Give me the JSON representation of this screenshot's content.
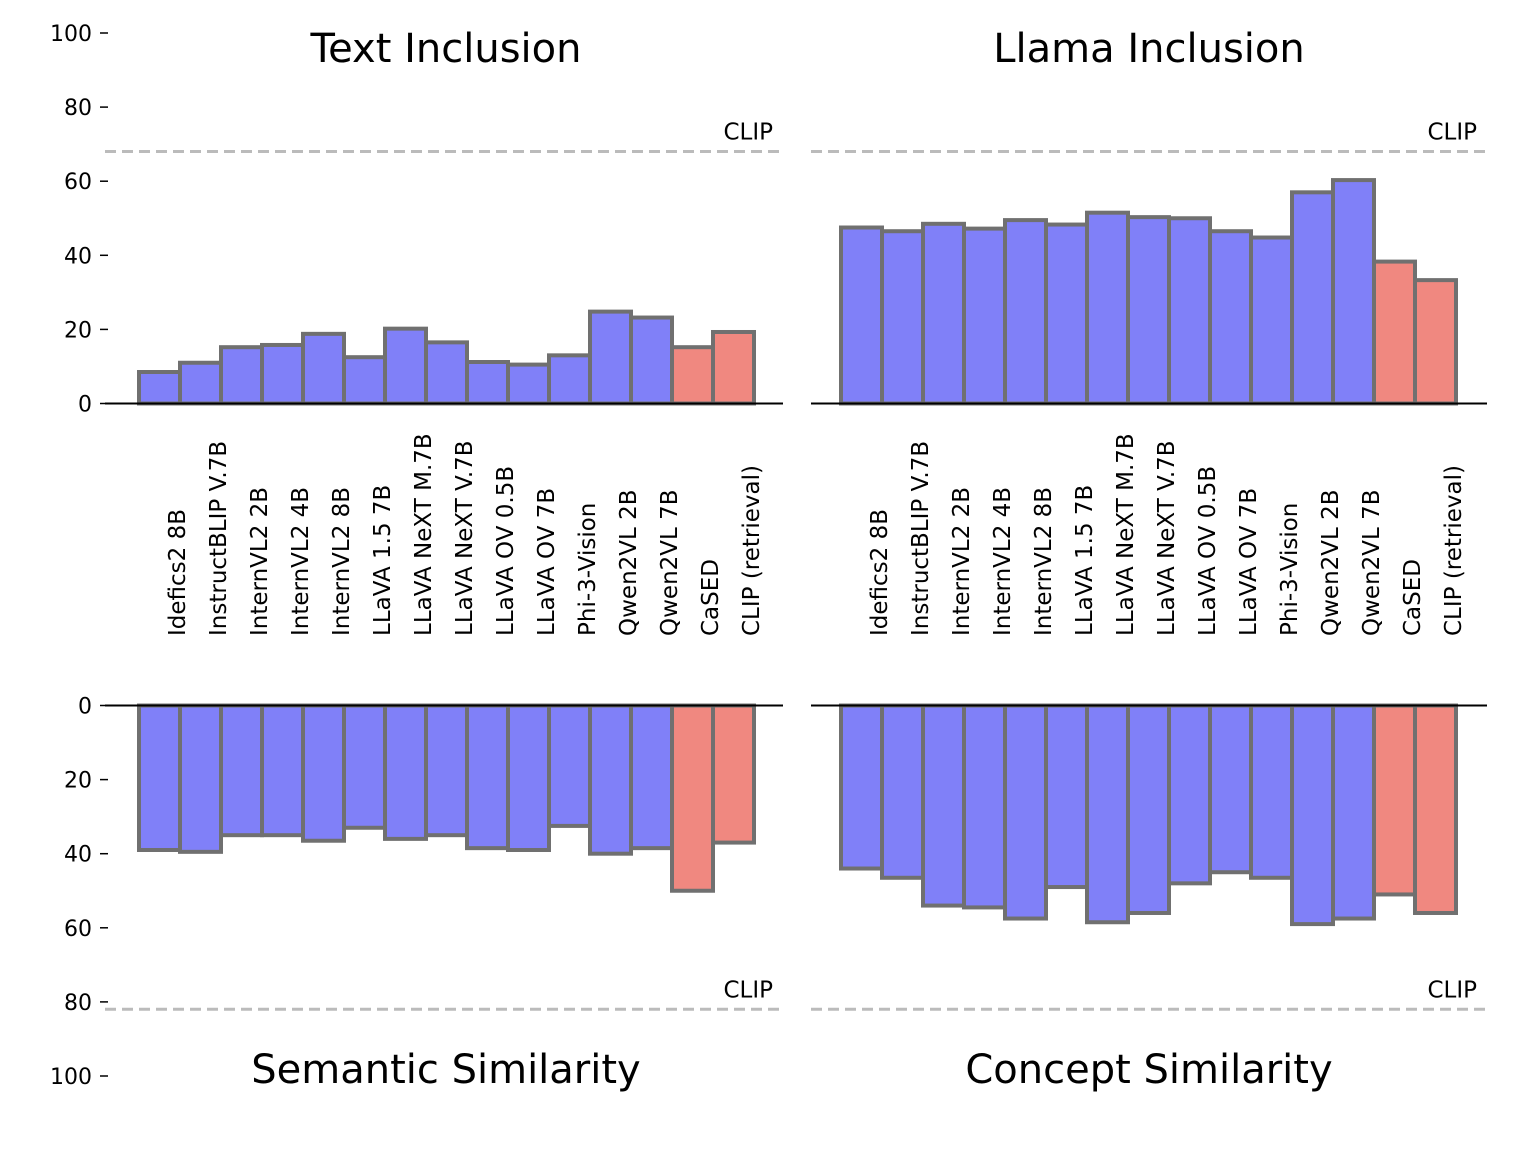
{
  "chart_data": {
    "type": "bar",
    "categories": [
      "Idefics2 8B",
      "InstructBLIP V.7B",
      "InternVL2 2B",
      "InternVL2 4B",
      "InternVL2 8B",
      "LLaVA 1.5 7B",
      "LLaVA NeXT M.7B",
      "LLaVA NeXT V.7B",
      "LLaVA OV 0.5B",
      "LLaVA OV 7B",
      "Phi-3-Vision",
      "Qwen2VL 2B",
      "Qwen2VL 7B",
      "CaSED",
      "CLIP (retrieval)"
    ],
    "yticks_top": [
      "0",
      "20",
      "40",
      "60",
      "80",
      "100"
    ],
    "yticks_bottom": [
      "0",
      "20",
      "40",
      "60",
      "80",
      "100"
    ],
    "ylim": [
      0,
      100
    ],
    "reference_line_label": "CLIP",
    "colors": {
      "model": "#8080f8",
      "baseline": "#f08880",
      "edge": "#707070",
      "reference_line": "#bbbbbb"
    },
    "panels": [
      {
        "title": "Text Inclusion",
        "direction": "up",
        "clip_value": 68,
        "values": [
          8.5,
          11,
          15.2,
          15.8,
          18.8,
          12.5,
          20.2,
          16.5,
          11.2,
          10.5,
          13,
          24.8,
          23.2,
          15.2,
          19.3
        ]
      },
      {
        "title": "Llama Inclusion",
        "direction": "up",
        "clip_value": 68,
        "values": [
          47.5,
          46.5,
          48.5,
          47.2,
          49.5,
          48.3,
          51.5,
          50.3,
          50,
          46.5,
          44.8,
          57,
          60.3,
          38.3,
          33.3
        ]
      },
      {
        "title": "Semantic Similarity",
        "direction": "down",
        "clip_value": 82,
        "values": [
          39,
          39.5,
          35,
          35,
          36.5,
          33,
          36,
          35,
          38.5,
          39,
          32.5,
          40,
          38.5,
          50,
          37
        ]
      },
      {
        "title": "Concept Similarity",
        "direction": "down",
        "clip_value": 82,
        "values": [
          44,
          46.5,
          54,
          54.5,
          57.5,
          49,
          58.5,
          56,
          48,
          45,
          46.5,
          59,
          57.5,
          51,
          56
        ]
      }
    ]
  }
}
